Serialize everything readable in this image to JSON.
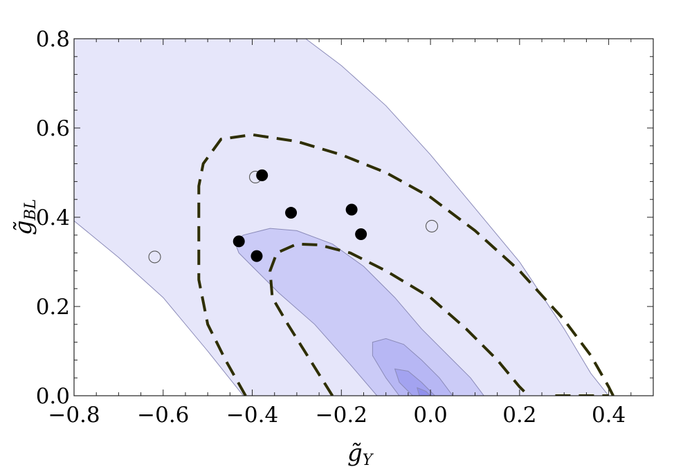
{
  "chart_data": {
    "type": "contour",
    "title": "",
    "xlabel": {
      "symbol": "g̃",
      "subscript": "Y"
    },
    "ylabel": {
      "symbol": "g̃",
      "subscript": "BL"
    },
    "xlim": [
      -0.8,
      0.5
    ],
    "ylim": [
      0.0,
      0.8
    ],
    "xticks": [
      -0.8,
      -0.6,
      -0.4,
      -0.2,
      0.0,
      0.2,
      0.4
    ],
    "xtick_labels": [
      "−0.8",
      "−0.6",
      "−0.4",
      "−0.2",
      "0.0",
      "0.2",
      "0.4"
    ],
    "yticks": [
      0.0,
      0.2,
      0.4,
      0.6,
      0.8
    ],
    "ytick_labels": [
      "0.0",
      "0.2",
      "0.4",
      "0.6",
      "0.8"
    ],
    "grid": false,
    "filled_regions": [
      {
        "level": 1,
        "color": "#e6e6fa",
        "boundary": [
          [
            -0.8,
            0.392
          ],
          [
            -0.8,
            0.8
          ],
          [
            -0.28,
            0.8
          ],
          [
            -0.2,
            0.74
          ],
          [
            -0.1,
            0.65
          ],
          [
            0.0,
            0.54
          ],
          [
            0.1,
            0.42
          ],
          [
            0.2,
            0.3
          ],
          [
            0.3,
            0.15
          ],
          [
            0.36,
            0.05
          ],
          [
            0.4,
            0.0
          ],
          [
            -0.42,
            0.0
          ],
          [
            -0.5,
            0.1
          ],
          [
            -0.6,
            0.22
          ],
          [
            -0.7,
            0.31
          ]
        ]
      },
      {
        "level": 2,
        "color": "#cbcbf7",
        "boundary": [
          [
            -0.44,
            0.346
          ],
          [
            -0.42,
            0.36
          ],
          [
            -0.36,
            0.375
          ],
          [
            -0.3,
            0.37
          ],
          [
            -0.22,
            0.34
          ],
          [
            -0.15,
            0.29
          ],
          [
            -0.08,
            0.22
          ],
          [
            -0.02,
            0.15
          ],
          [
            0.04,
            0.09
          ],
          [
            0.09,
            0.04
          ],
          [
            0.12,
            0.0
          ],
          [
            -0.12,
            0.0
          ],
          [
            -0.18,
            0.07
          ],
          [
            -0.26,
            0.16
          ],
          [
            -0.34,
            0.23
          ],
          [
            -0.4,
            0.29
          ],
          [
            -0.43,
            0.32
          ]
        ]
      },
      {
        "level": 3,
        "color": "#b7b7f4",
        "boundary": [
          [
            -0.13,
            0.12
          ],
          [
            -0.1,
            0.128
          ],
          [
            -0.06,
            0.115
          ],
          [
            -0.02,
            0.08
          ],
          [
            0.02,
            0.04
          ],
          [
            0.05,
            0.0
          ],
          [
            -0.07,
            0.0
          ],
          [
            -0.1,
            0.04
          ],
          [
            -0.13,
            0.09
          ]
        ]
      },
      {
        "level": 4,
        "color": "#a3a3f0",
        "boundary": [
          [
            -0.08,
            0.06
          ],
          [
            -0.05,
            0.055
          ],
          [
            -0.02,
            0.03
          ],
          [
            0.01,
            0.0
          ],
          [
            -0.04,
            0.0
          ],
          [
            -0.07,
            0.03
          ]
        ]
      },
      {
        "level": 5,
        "color": "#9090ec",
        "boundary": [
          [
            -0.03,
            0.018
          ],
          [
            -0.01,
            0.01
          ],
          [
            0.0,
            0.0
          ],
          [
            -0.025,
            0.0
          ]
        ]
      }
    ],
    "dashed_contours": [
      {
        "name": "",
        "color": "#2e2e00",
        "points": [
          [
            -0.415,
            0.0
          ],
          [
            -0.46,
            0.08
          ],
          [
            -0.5,
            0.16
          ],
          [
            -0.52,
            0.26
          ],
          [
            -0.52,
            0.36
          ],
          [
            -0.52,
            0.47
          ],
          [
            -0.51,
            0.52
          ],
          [
            -0.47,
            0.575
          ],
          [
            -0.4,
            0.585
          ],
          [
            -0.3,
            0.57
          ],
          [
            -0.2,
            0.54
          ],
          [
            -0.1,
            0.5
          ],
          [
            0.0,
            0.445
          ],
          [
            0.1,
            0.37
          ],
          [
            0.2,
            0.28
          ],
          [
            0.3,
            0.17
          ],
          [
            0.36,
            0.09
          ],
          [
            0.4,
            0.02
          ],
          [
            0.41,
            0.0
          ]
        ]
      },
      {
        "name": "",
        "color": "#2e2e00",
        "points": [
          [
            -0.22,
            0.0
          ],
          [
            -0.27,
            0.08
          ],
          [
            -0.32,
            0.16
          ],
          [
            -0.355,
            0.22
          ],
          [
            -0.36,
            0.28
          ],
          [
            -0.345,
            0.32
          ],
          [
            -0.3,
            0.34
          ],
          [
            -0.25,
            0.338
          ],
          [
            -0.18,
            0.32
          ],
          [
            -0.1,
            0.28
          ],
          [
            0.0,
            0.22
          ],
          [
            0.08,
            0.15
          ],
          [
            0.15,
            0.08
          ],
          [
            0.2,
            0.02
          ],
          [
            0.22,
            0.0
          ]
        ]
      },
      {
        "name": "",
        "color": "#2e2e00",
        "points": [
          [
            0.28,
            0.0
          ],
          [
            0.4,
            0.0
          ]
        ]
      }
    ],
    "filled_points": [
      {
        "x": -0.378,
        "y": 0.494
      },
      {
        "x": -0.313,
        "y": 0.41
      },
      {
        "x": -0.177,
        "y": 0.417
      },
      {
        "x": -0.156,
        "y": 0.362
      },
      {
        "x": -0.43,
        "y": 0.346
      },
      {
        "x": -0.39,
        "y": 0.313
      }
    ],
    "open_points": [
      {
        "x": -0.393,
        "y": 0.49
      },
      {
        "x": -0.619,
        "y": 0.311
      },
      {
        "x": 0.003,
        "y": 0.38
      }
    ]
  }
}
